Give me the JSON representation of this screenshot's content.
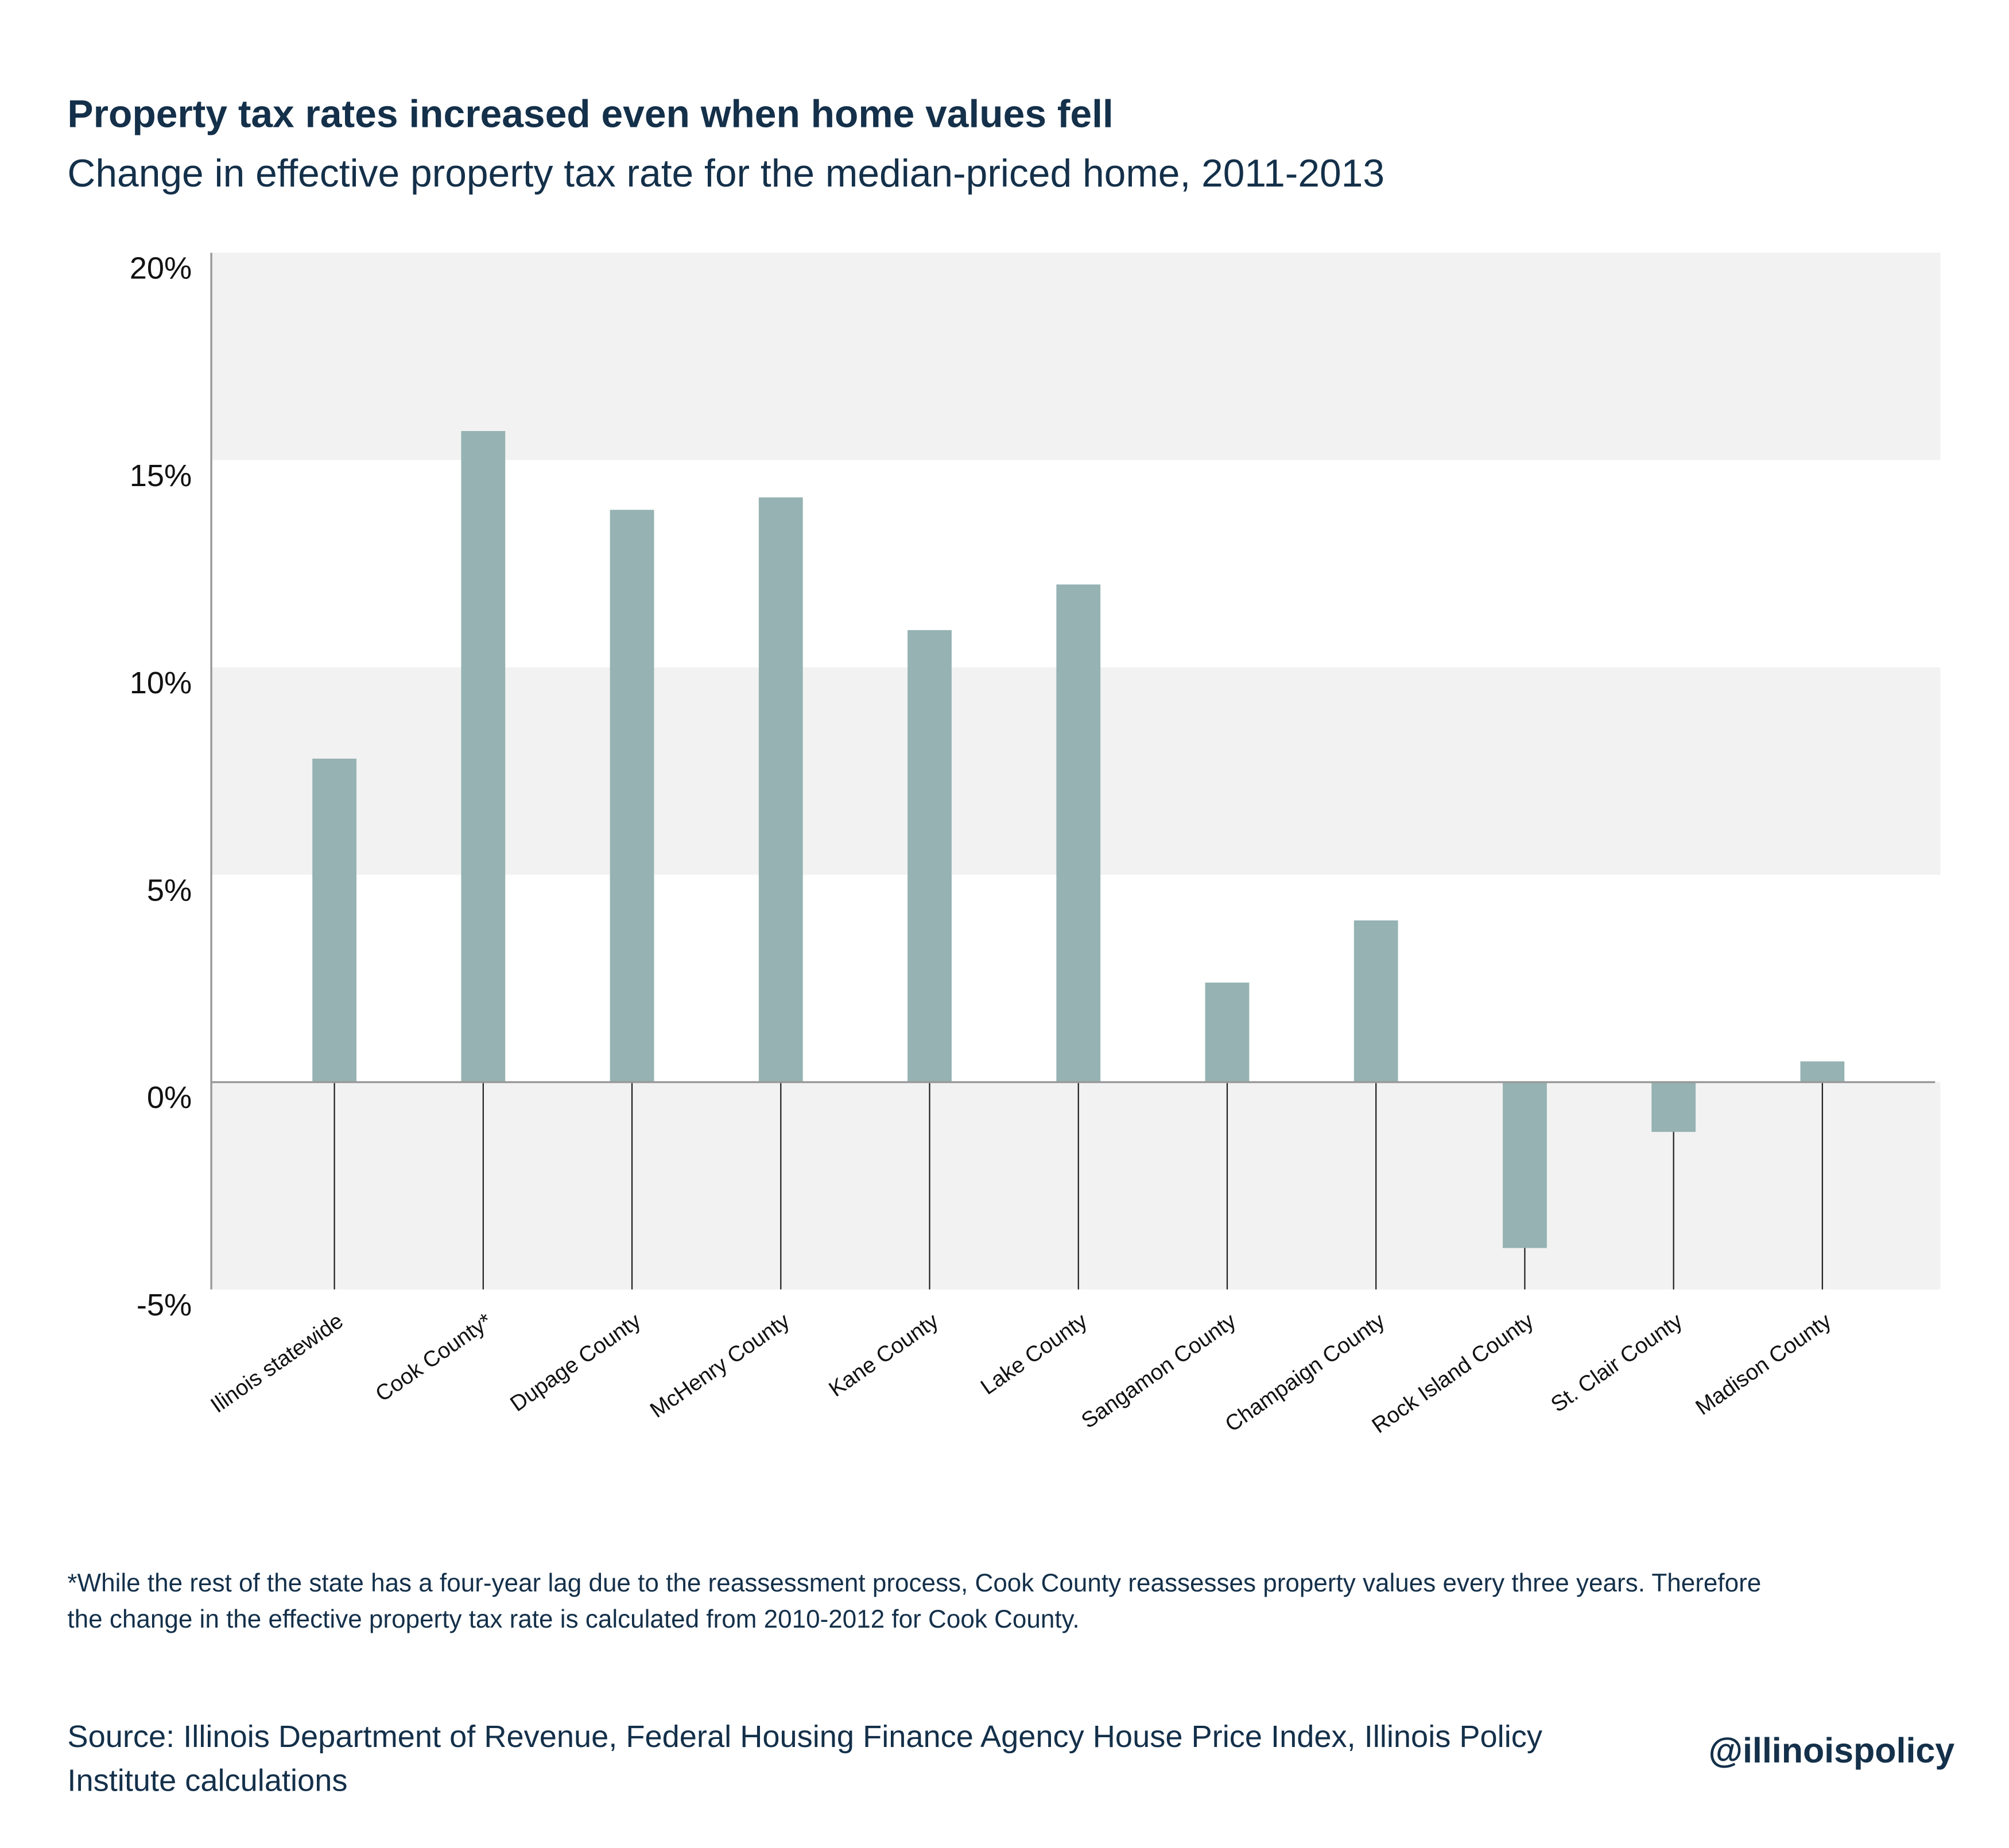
{
  "title": "Property tax rates increased even when home values fell",
  "subtitle": "Change in effective property tax rate for the median-priced home, 2011-2013",
  "note": "*While the rest of the state has a four-year lag due to the reassessment process, Cook County reassesses property values every three years. Therefore the change in the effective property tax rate is calculated from 2010-2012 for Cook County.",
  "source": "Source: Illinois Department of Revenue, Federal Housing Finance Agency House Price Index, Illinois Policy Institute calculations",
  "handle": "@illinoispolicy",
  "chart_data": {
    "type": "bar",
    "title": "Property tax rates increased even when home values fell",
    "subtitle": "Change in effective property tax rate for the median-priced home, 2011-2013",
    "categories": [
      "Ilinois statewide",
      "Cook County*",
      "Dupage County",
      "McHenry County",
      "Kane County",
      "Lake County",
      "Sangamon County",
      "Champaign County",
      "Rock Island County",
      "St. Clair County",
      "Madison County"
    ],
    "values": [
      7.8,
      15.7,
      13.8,
      14.1,
      10.9,
      12.0,
      2.4,
      3.9,
      -4.0,
      -1.2,
      0.5
    ],
    "unit": "%",
    "ylim": [
      -5,
      20
    ],
    "yticks": [
      -5,
      0,
      5,
      10,
      15,
      20
    ],
    "ytick_labels": [
      "-5%",
      "0%",
      "5%",
      "10%",
      "15%",
      "20%"
    ],
    "grid": "alternating horizontal bands",
    "colors": {
      "bar": "#96b2b2",
      "band": "#f2f2f2",
      "text": "#14304a"
    }
  }
}
